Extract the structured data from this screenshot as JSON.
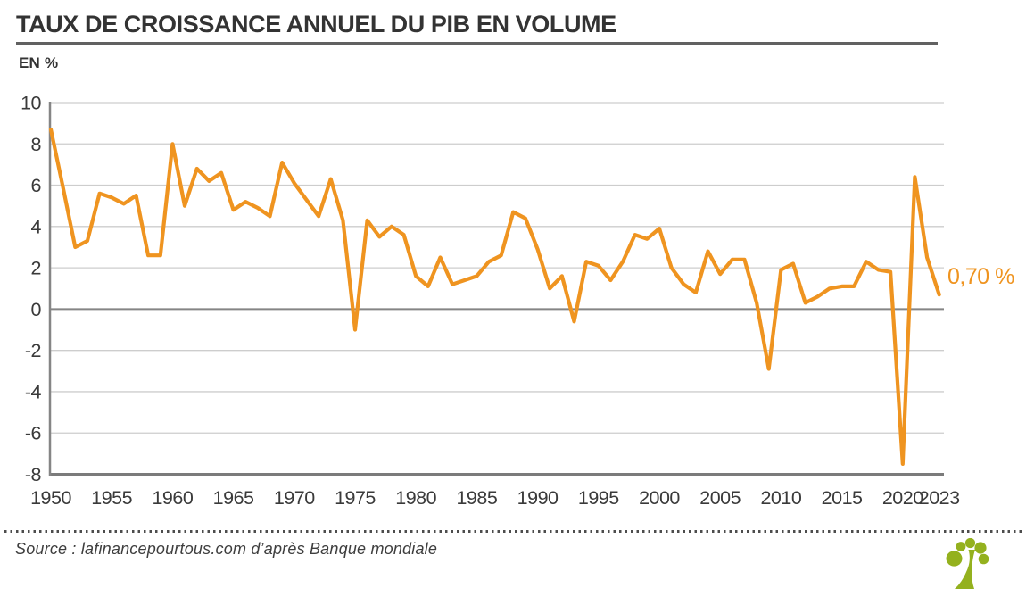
{
  "header": {
    "title": "TAUX DE CROISSANCE ANNUEL DU PIB EN VOLUME",
    "unit_label": "EN %"
  },
  "footer": {
    "source": "Source : lafinancepourtous.com d’après Banque mondiale",
    "logo": "lafinancepourtous-tree-logo"
  },
  "colors": {
    "line": "#EF9420",
    "title": "#333333",
    "grid": "#cdcdcd",
    "axis": "#858585",
    "bottom_border": "#7b7b7b",
    "tick_label": "#3a3a3a",
    "logo_green": "#94B11E",
    "dotted_rule": "#4d4d4d"
  },
  "chart_data": {
    "type": "line",
    "title": "TAUX DE CROISSANCE ANNUEL DU PIB EN VOLUME",
    "ylabel": "EN %",
    "xlabel": "",
    "x_start": 1950,
    "x_end": 2023,
    "x_tick_labels": [
      "1950",
      "1955",
      "1960",
      "1965",
      "1970",
      "1975",
      "1980",
      "1985",
      "1990",
      "1995",
      "2000",
      "2005",
      "2010",
      "2015",
      "2020",
      "2023"
    ],
    "y_ticks": [
      10,
      8,
      6,
      4,
      2,
      0,
      -2,
      -4,
      -6,
      -8
    ],
    "ylim": [
      -8,
      10
    ],
    "grid": true,
    "legend": "none",
    "end_label": "0,70 %",
    "series": [
      {
        "name": "Taux de croissance annuel du PIB en volume (%)",
        "values": [
          8.7,
          5.9,
          3.0,
          3.3,
          5.6,
          5.4,
          5.1,
          5.5,
          2.6,
          2.6,
          8.0,
          5.0,
          6.8,
          6.2,
          6.6,
          4.8,
          5.2,
          4.9,
          4.5,
          7.1,
          6.1,
          5.3,
          4.5,
          6.3,
          4.3,
          -1.0,
          4.3,
          3.5,
          4.0,
          3.6,
          1.6,
          1.1,
          2.5,
          1.2,
          1.4,
          1.6,
          2.3,
          2.6,
          4.7,
          4.4,
          2.9,
          1.0,
          1.6,
          -0.6,
          2.3,
          2.1,
          1.4,
          2.3,
          3.6,
          3.4,
          3.9,
          2.0,
          1.2,
          0.8,
          2.8,
          1.7,
          2.4,
          2.4,
          0.3,
          -2.9,
          1.9,
          2.2,
          0.3,
          0.6,
          1.0,
          1.1,
          1.1,
          2.3,
          1.9,
          1.8,
          -7.5,
          6.4,
          2.5,
          0.7
        ]
      }
    ]
  }
}
